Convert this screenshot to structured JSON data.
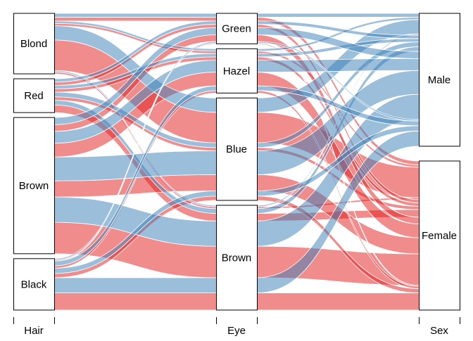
{
  "chart_data": {
    "type": "alluvial",
    "title": "",
    "axes": [
      {
        "name": "Hair",
        "levels": [
          "Blond",
          "Red",
          "Brown",
          "Black"
        ]
      },
      {
        "name": "Eye",
        "levels": [
          "Green",
          "Hazel",
          "Blue",
          "Brown"
        ]
      },
      {
        "name": "Sex",
        "levels": [
          "Male",
          "Female"
        ]
      }
    ],
    "colors": {
      "Male": "#377EB8",
      "Female": "#E41A1C"
    },
    "color_by": "Sex",
    "flows": [
      {
        "Hair": "Black",
        "Eye": "Brown",
        "Sex": "Male",
        "freq": 32
      },
      {
        "Hair": "Brown",
        "Eye": "Brown",
        "Sex": "Male",
        "freq": 53
      },
      {
        "Hair": "Red",
        "Eye": "Brown",
        "Sex": "Male",
        "freq": 10
      },
      {
        "Hair": "Blond",
        "Eye": "Brown",
        "Sex": "Male",
        "freq": 3
      },
      {
        "Hair": "Black",
        "Eye": "Blue",
        "Sex": "Male",
        "freq": 11
      },
      {
        "Hair": "Brown",
        "Eye": "Blue",
        "Sex": "Male",
        "freq": 50
      },
      {
        "Hair": "Red",
        "Eye": "Blue",
        "Sex": "Male",
        "freq": 10
      },
      {
        "Hair": "Blond",
        "Eye": "Blue",
        "Sex": "Male",
        "freq": 30
      },
      {
        "Hair": "Black",
        "Eye": "Hazel",
        "Sex": "Male",
        "freq": 10
      },
      {
        "Hair": "Brown",
        "Eye": "Hazel",
        "Sex": "Male",
        "freq": 25
      },
      {
        "Hair": "Red",
        "Eye": "Hazel",
        "Sex": "Male",
        "freq": 7
      },
      {
        "Hair": "Blond",
        "Eye": "Hazel",
        "Sex": "Male",
        "freq": 5
      },
      {
        "Hair": "Black",
        "Eye": "Green",
        "Sex": "Male",
        "freq": 3
      },
      {
        "Hair": "Brown",
        "Eye": "Green",
        "Sex": "Male",
        "freq": 15
      },
      {
        "Hair": "Red",
        "Eye": "Green",
        "Sex": "Male",
        "freq": 7
      },
      {
        "Hair": "Blond",
        "Eye": "Green",
        "Sex": "Male",
        "freq": 8
      },
      {
        "Hair": "Black",
        "Eye": "Brown",
        "Sex": "Female",
        "freq": 36
      },
      {
        "Hair": "Brown",
        "Eye": "Brown",
        "Sex": "Female",
        "freq": 66
      },
      {
        "Hair": "Red",
        "Eye": "Brown",
        "Sex": "Female",
        "freq": 16
      },
      {
        "Hair": "Blond",
        "Eye": "Brown",
        "Sex": "Female",
        "freq": 4
      },
      {
        "Hair": "Black",
        "Eye": "Blue",
        "Sex": "Female",
        "freq": 9
      },
      {
        "Hair": "Brown",
        "Eye": "Blue",
        "Sex": "Female",
        "freq": 34
      },
      {
        "Hair": "Red",
        "Eye": "Blue",
        "Sex": "Female",
        "freq": 7
      },
      {
        "Hair": "Blond",
        "Eye": "Blue",
        "Sex": "Female",
        "freq": 64
      },
      {
        "Hair": "Black",
        "Eye": "Hazel",
        "Sex": "Female",
        "freq": 5
      },
      {
        "Hair": "Brown",
        "Eye": "Hazel",
        "Sex": "Female",
        "freq": 29
      },
      {
        "Hair": "Red",
        "Eye": "Hazel",
        "Sex": "Female",
        "freq": 7
      },
      {
        "Hair": "Blond",
        "Eye": "Hazel",
        "Sex": "Female",
        "freq": 5
      },
      {
        "Hair": "Black",
        "Eye": "Green",
        "Sex": "Female",
        "freq": 2
      },
      {
        "Hair": "Brown",
        "Eye": "Green",
        "Sex": "Female",
        "freq": 14
      },
      {
        "Hair": "Red",
        "Eye": "Green",
        "Sex": "Female",
        "freq": 7
      },
      {
        "Hair": "Blond",
        "Eye": "Green",
        "Sex": "Female",
        "freq": 8
      }
    ]
  }
}
